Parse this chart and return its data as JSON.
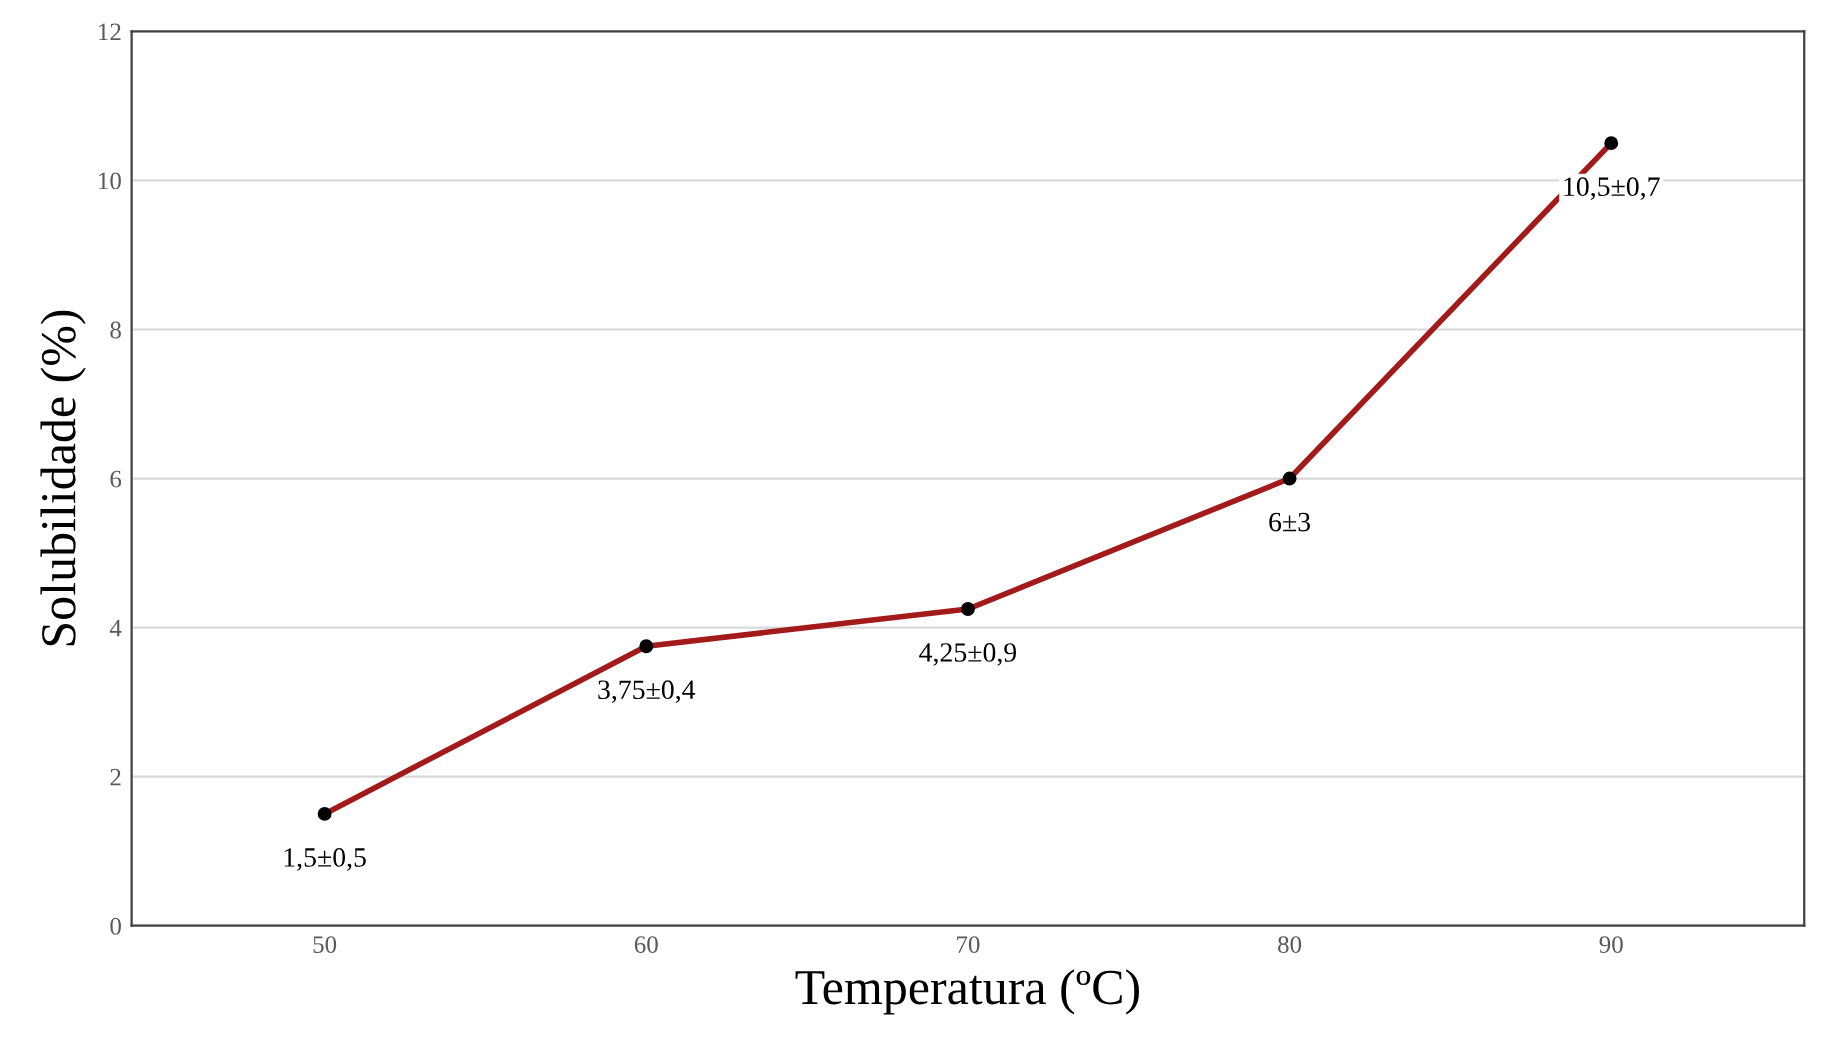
{
  "chart_data": {
    "type": "line",
    "xlabel": "Temperatura (ºC)",
    "ylabel": "Solubilidade (%)",
    "categories": [
      "50",
      "60",
      "70",
      "80",
      "90"
    ],
    "series": [
      {
        "color": "#a31a1a",
        "values": [
          1.5,
          3.75,
          4.25,
          6,
          10.5
        ],
        "value_labels": [
          "1,5±0,5",
          "3,75±0,4",
          "4,25±0,9",
          "6±3",
          "10,5±0,7"
        ]
      }
    ],
    "ylim": [
      0,
      12
    ],
    "yticks": [
      0,
      2,
      4,
      6,
      8,
      10,
      12
    ],
    "grid": "y",
    "marker": "circle",
    "line_style": "solid"
  }
}
